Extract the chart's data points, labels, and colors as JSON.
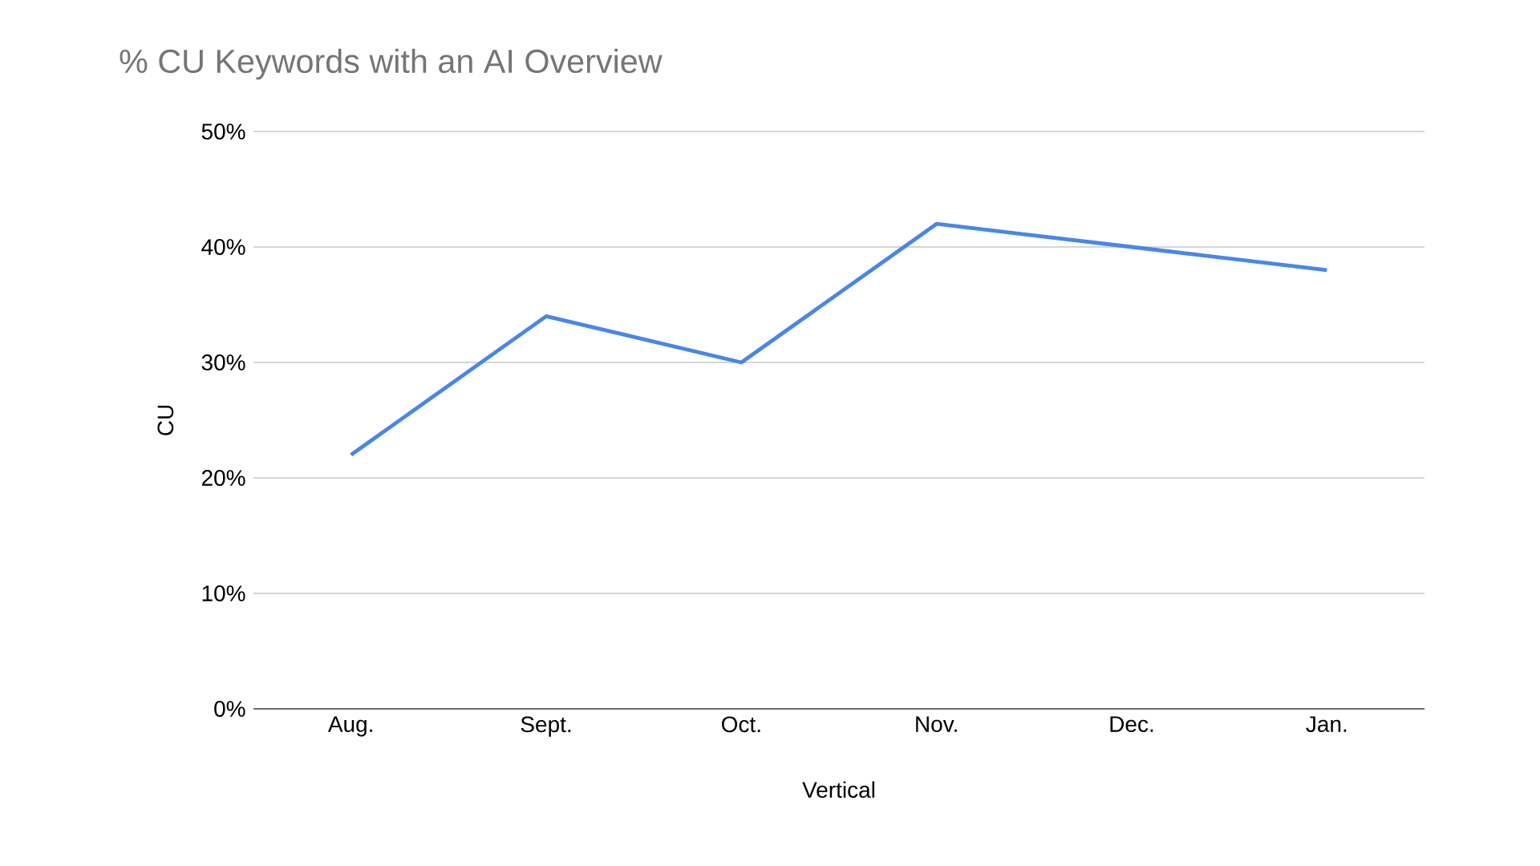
{
  "chart_data": {
    "type": "line",
    "title": "% CU Keywords with an AI Overview",
    "xlabel": "Vertical",
    "ylabel": "CU",
    "categories": [
      "Aug.",
      "Sept.",
      "Oct.",
      "Nov.",
      "Dec.",
      "Jan."
    ],
    "series": [
      {
        "color": "#4a86e8",
        "values": [
          22,
          34,
          30,
          42,
          40,
          38
        ]
      }
    ],
    "ylim": [
      0,
      50
    ],
    "yticks": [
      {
        "value": 0,
        "label": "0%"
      },
      {
        "value": 10,
        "label": "10%"
      },
      {
        "value": 20,
        "label": "20%"
      },
      {
        "value": 30,
        "label": "30%"
      },
      {
        "value": 40,
        "label": "40%"
      },
      {
        "value": 50,
        "label": "50%"
      }
    ],
    "grid": "y"
  }
}
